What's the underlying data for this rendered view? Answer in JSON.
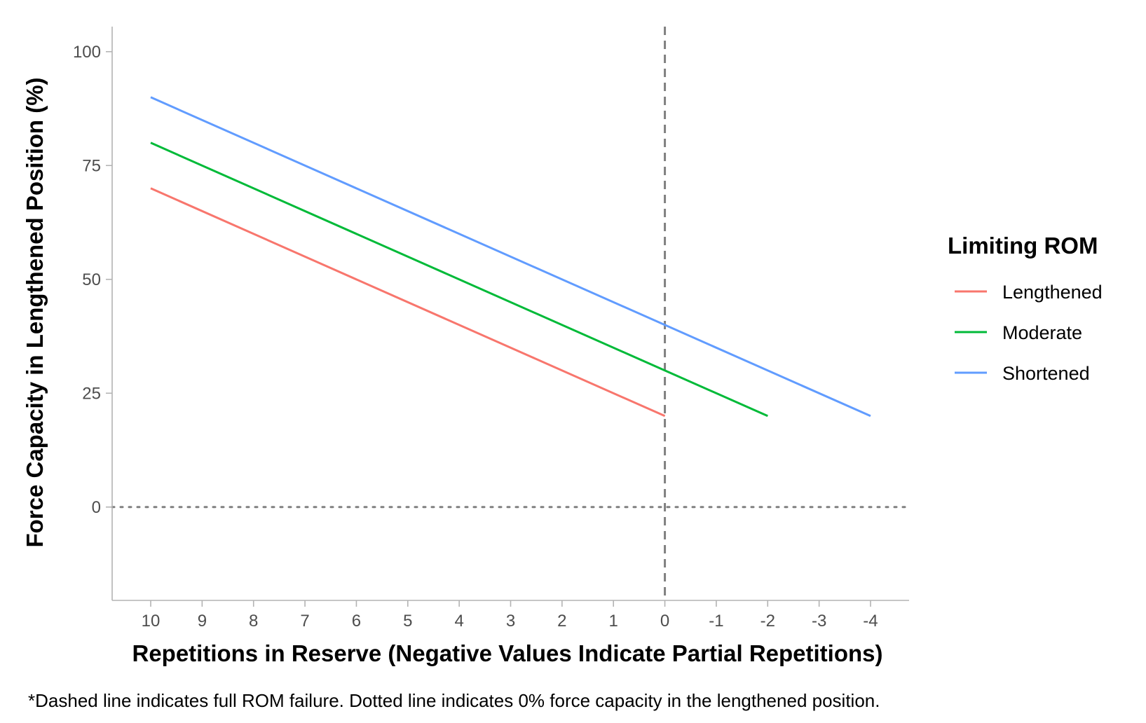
{
  "chart_data": {
    "type": "line",
    "xlabel": "Repetitions in Reserve (Negative Values Indicate Partial Repetitions)",
    "ylabel": "Force Capacity in Lengthened Position (%)",
    "caption": "*Dashed line indicates full ROM failure. Dotted line indicates 0% force capacity in the lengthened position.",
    "x_reversed": true,
    "xlim": [
      10.75,
      -4.75
    ],
    "ylim": [
      -20.5,
      105.5
    ],
    "x_ticks": [
      10,
      9,
      8,
      7,
      6,
      5,
      4,
      3,
      2,
      1,
      0,
      -1,
      -2,
      -3,
      -4
    ],
    "x_tick_labels": [
      "10",
      "9",
      "8",
      "7",
      "6",
      "5",
      "4",
      "3",
      "2",
      "1",
      "0",
      "-1",
      "-2",
      "-3",
      "-4"
    ],
    "y_ticks": [
      0,
      25,
      50,
      75,
      100
    ],
    "y_tick_labels": [
      "0",
      "25",
      "50",
      "75",
      "100"
    ],
    "grid": false,
    "legend": {
      "title": "Limiting ROM",
      "position": "right"
    },
    "series": [
      {
        "name": "Lengthened",
        "color": "#F8766D",
        "x": [
          10,
          0
        ],
        "y": [
          70,
          20
        ]
      },
      {
        "name": "Moderate",
        "color": "#00BA38",
        "x": [
          10,
          -2
        ],
        "y": [
          80,
          20
        ]
      },
      {
        "name": "Shortened",
        "color": "#619CFF",
        "x": [
          10,
          -4
        ],
        "y": [
          90,
          20
        ]
      }
    ],
    "reference_lines": [
      {
        "orientation": "vertical",
        "x": 0,
        "style": "dashed",
        "color": "#808080"
      },
      {
        "orientation": "horizontal",
        "y": 0,
        "style": "dotted",
        "color": "#808080"
      }
    ]
  }
}
